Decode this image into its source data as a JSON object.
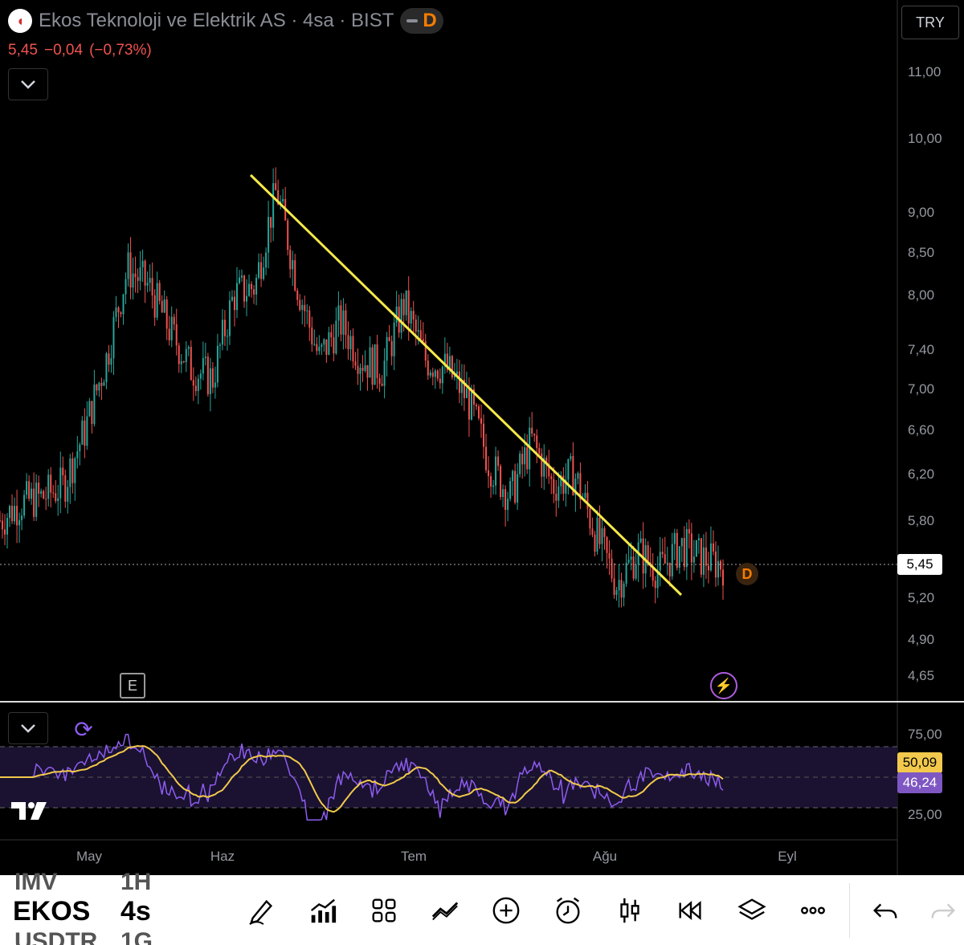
{
  "header": {
    "title": "Ekos Teknoloji ve Elektrik AS · 4sa · BIST",
    "badge": "D",
    "last_price": "5,45",
    "change": "−0,04",
    "change_pct": "(−0,73%)"
  },
  "currency": "TRY",
  "current_price_tag": "5,45",
  "rsi_tags": {
    "ma": "50,09",
    "rsi": "46,24"
  },
  "price_axis": [
    "11,00",
    "10,00",
    "9,00",
    "8,50",
    "8,00",
    "7,40",
    "7,00",
    "6,60",
    "6,20",
    "5,80",
    "5,20",
    "4,90",
    "4,65"
  ],
  "rsi_axis": [
    "75,00",
    "25,00"
  ],
  "time_axis": [
    "May",
    "Haz",
    "Tem",
    "Ağu",
    "Eyl"
  ],
  "markers": {
    "earnings": "E",
    "dividend": "D"
  },
  "toolbar": {
    "ghost_symbol_top": "IMV",
    "ghost_interval_top": "1H",
    "symbol": "EKOS",
    "interval": "4s",
    "ghost_symbol_bottom": "USDTR",
    "ghost_interval_bottom": "1G",
    "icons": [
      "draw-icon",
      "indicators-icon",
      "grid-icon",
      "compare-icon",
      "add-icon",
      "alert-icon",
      "candles-icon",
      "replay-icon",
      "layers-icon",
      "more-icon",
      "undo-icon",
      "redo-icon"
    ]
  },
  "colors": {
    "up": "#26a69a",
    "down": "#ef5350",
    "trendline": "#f5e94a",
    "rsi": "#8e5cf0",
    "rsi_ma": "#f2c94c",
    "accent_orange": "#f57c00"
  },
  "chart_data": {
    "type": "candlestick",
    "symbol": "EKOS",
    "interval": "4sa",
    "ylim": [
      4.65,
      11.0
    ],
    "x": [
      "May",
      "Haz",
      "Tem",
      "Ağu",
      "Eyl"
    ],
    "close_path": [
      [
        "Apr end",
        5.8
      ],
      [
        "May 1",
        5.95
      ],
      [
        "May 5",
        6.0
      ],
      [
        "May 10",
        6.1
      ],
      [
        "May 14",
        6.6
      ],
      [
        "May 17",
        7.3
      ],
      [
        "May 20",
        8.3
      ],
      [
        "May 23",
        8.1
      ],
      [
        "May 26",
        7.6
      ],
      [
        "May 28",
        7.2
      ],
      [
        "May 31",
        7.1
      ],
      [
        "Jun 3",
        8.0
      ],
      [
        "Jun 6",
        8.1
      ],
      [
        "Jun 8",
        9.3
      ],
      [
        "Jun 10",
        8.1
      ],
      [
        "Jun 14",
        7.3
      ],
      [
        "Jun 17",
        7.7
      ],
      [
        "Jun 20",
        7.3
      ],
      [
        "Jun 24",
        7.2
      ],
      [
        "Jun 27",
        7.9
      ],
      [
        "Jul 1",
        7.3
      ],
      [
        "Jul 5",
        7.2
      ],
      [
        "Jul 10",
        6.9
      ],
      [
        "Jul 14",
        6.3
      ],
      [
        "Jul 18",
        6.0
      ],
      [
        "Jul 22",
        6.5
      ],
      [
        "Jul 24",
        6.1
      ],
      [
        "Jul 28",
        6.2
      ],
      [
        "Aug 1",
        5.7
      ],
      [
        "Aug 5",
        5.3
      ],
      [
        "Aug 8",
        5.55
      ],
      [
        "Aug 12",
        5.4
      ],
      [
        "Aug 16",
        5.6
      ],
      [
        "Aug 19",
        5.5
      ],
      [
        "Aug 22",
        5.45
      ]
    ],
    "trendline": {
      "start": [
        "Jun 8",
        9.3
      ],
      "end": [
        "Aug 17",
        5.25
      ]
    },
    "rsi": {
      "levels": [
        75,
        50,
        25
      ],
      "last_rsi": 46.24,
      "last_ma": 50.09
    }
  }
}
